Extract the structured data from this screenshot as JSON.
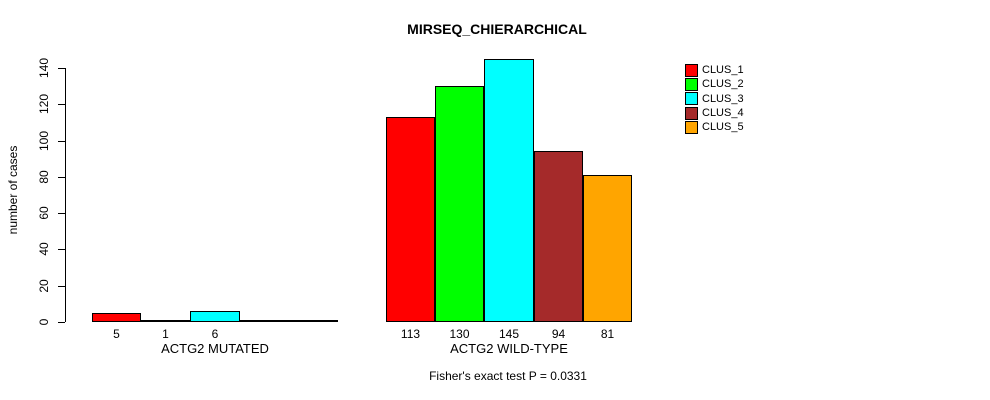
{
  "chart_data": {
    "type": "bar",
    "title": "MIRSEQ_CHIERARCHICAL",
    "ylabel": "number of cases",
    "xlabel": "",
    "ylim": [
      0,
      140
    ],
    "yticks": [
      0,
      20,
      40,
      60,
      80,
      100,
      120,
      140
    ],
    "grid": false,
    "legend_position": "top-right",
    "series": [
      {
        "name": "CLUS_1",
        "color": "#FF0000"
      },
      {
        "name": "CLUS_2",
        "color": "#00FF00"
      },
      {
        "name": "CLUS_3",
        "color": "#00FFFF"
      },
      {
        "name": "CLUS_4",
        "color": "#A52A2A"
      },
      {
        "name": "CLUS_5",
        "color": "#FFA500"
      }
    ],
    "groups": [
      {
        "label": "ACTG2 MUTATED",
        "values": [
          5,
          1,
          6,
          0,
          0
        ],
        "bar_labels": [
          "5",
          "1",
          "6",
          "",
          ""
        ]
      },
      {
        "label": "ACTG2 WILD-TYPE",
        "values": [
          113,
          130,
          145,
          94,
          81
        ],
        "bar_labels": [
          "113",
          "130",
          "145",
          "94",
          "81"
        ]
      }
    ],
    "annotation": "Fisher's exact test P = 0.0331",
    "axis_color": "#000000",
    "bar_border_color": "#000000",
    "background_color": "#FFFFFF"
  }
}
